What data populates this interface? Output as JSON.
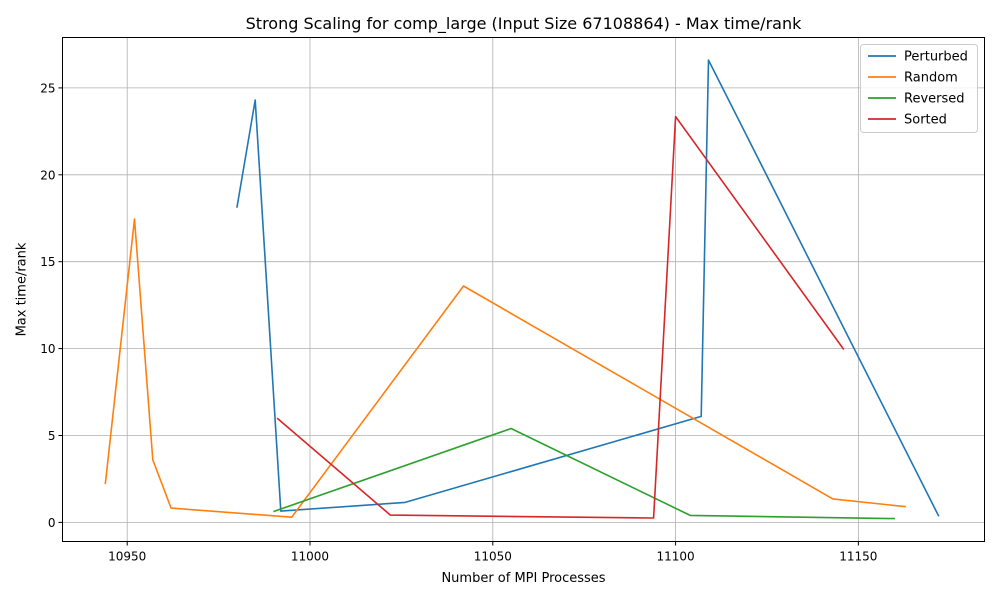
{
  "chart_data": {
    "type": "line",
    "title": "Strong Scaling for comp_large (Input Size 67108864) - Max time/rank",
    "xlabel": "Number of MPI Processes",
    "ylabel": "Max time/rank",
    "xlim": [
      10932.3,
      11184.5
    ],
    "ylim": [
      -1.1,
      27.9
    ],
    "xticks": [
      10950,
      11000,
      11050,
      11100,
      11150
    ],
    "yticks": [
      0,
      5,
      10,
      15,
      20,
      25
    ],
    "grid": true,
    "legend_position": "top-right",
    "series": [
      {
        "name": "Perturbed",
        "color": "#1f77b4",
        "x": [
          10980,
          10985,
          10992,
          11026,
          11107,
          11109,
          11172
        ],
        "y": [
          18.1,
          24.3,
          0.65,
          1.15,
          6.1,
          26.6,
          0.35
        ]
      },
      {
        "name": "Random",
        "color": "#ff7f0e",
        "x": [
          10944,
          10952,
          10957,
          10962,
          10995,
          11042,
          11143,
          11163
        ],
        "y": [
          2.2,
          17.45,
          3.6,
          0.82,
          0.3,
          13.6,
          1.35,
          0.9
        ]
      },
      {
        "name": "Reversed",
        "color": "#2ca02c",
        "x": [
          10990,
          11055,
          11104,
          11160
        ],
        "y": [
          0.62,
          5.4,
          0.4,
          0.22
        ]
      },
      {
        "name": "Sorted",
        "color": "#d62728",
        "x": [
          10991,
          11022,
          11094,
          11100,
          11146
        ],
        "y": [
          6.0,
          0.42,
          0.25,
          23.35,
          9.95
        ]
      }
    ]
  }
}
